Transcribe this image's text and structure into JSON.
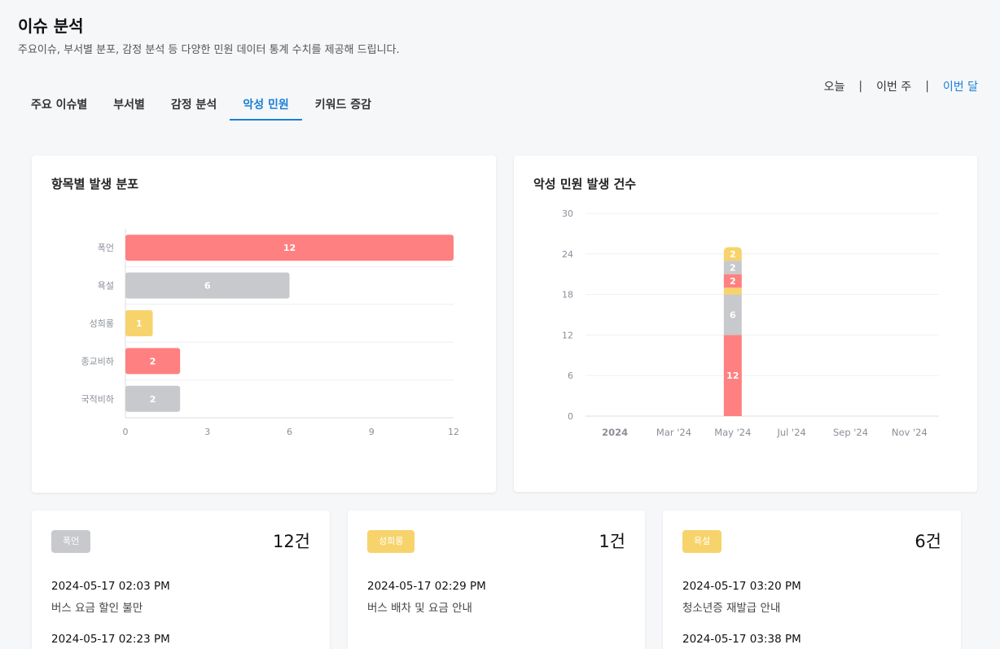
{
  "header": {
    "title": "이슈 분석",
    "subtitle": "주요이슈, 부서별 분포, 감정 분석 등 다양한 민원 데이터 통계 수치를 제공해 드립니다."
  },
  "tabs": [
    {
      "label": "주요 이슈별",
      "active": false
    },
    {
      "label": "부서별",
      "active": false
    },
    {
      "label": "감정 분석",
      "active": false
    },
    {
      "label": "악성 민원",
      "active": true
    },
    {
      "label": "키워드 증감",
      "active": false
    }
  ],
  "period": {
    "today": "오늘",
    "week": "이번 주",
    "month": "이번 달",
    "separator": "|",
    "selected": "이번 달"
  },
  "colors": {
    "accent": "#1a7fd6",
    "red": "#ff8080",
    "gray": "#c8c9cc",
    "yellow": "#f7d36b"
  },
  "left_card": {
    "title": "항목별 발생 분포"
  },
  "right_card": {
    "title": "악성 민원 발생 건수"
  },
  "chart_data": [
    {
      "type": "bar",
      "orientation": "horizontal",
      "categories": [
        "폭언",
        "욕설",
        "성희롱",
        "종교비하",
        "국적비하"
      ],
      "values": [
        12,
        6,
        1,
        2,
        2
      ],
      "bar_colors": [
        "#ff8080",
        "#c8c9cc",
        "#f7d36b",
        "#ff8080",
        "#c8c9cc"
      ],
      "xlim": [
        0,
        12
      ],
      "xticks": [
        0,
        3,
        6,
        9,
        12
      ],
      "grid": true
    },
    {
      "type": "bar",
      "stacked": true,
      "x_ticks": [
        "2024",
        "Mar '24",
        "May '24",
        "Jul '24",
        "Sep '24",
        "Nov '24"
      ],
      "ylim": [
        0,
        30
      ],
      "yticks": [
        0,
        6,
        12,
        18,
        24,
        30
      ],
      "bar_category": "May '24",
      "segments": [
        {
          "value": 12,
          "color": "#ff8080",
          "label": "12"
        },
        {
          "value": 6,
          "color": "#c8c9cc",
          "label": "6"
        },
        {
          "value": 1,
          "color": "#f7d36b",
          "label": ""
        },
        {
          "value": 2,
          "color": "#ff8080",
          "label": "2"
        },
        {
          "value": 2,
          "color": "#c8c9cc",
          "label": "2"
        },
        {
          "value": 2,
          "color": "#f7d36b",
          "label": "2"
        }
      ],
      "grid": true
    }
  ],
  "stat_cards": [
    {
      "badge": "폭언",
      "badge_color": "#c8c9cc",
      "count": "12건",
      "entries": [
        {
          "time": "2024-05-17 02:03 PM",
          "text": "버스 요금 할인 불만"
        },
        {
          "time": "2024-05-17 02:23 PM",
          "text": ""
        }
      ]
    },
    {
      "badge": "성희롱",
      "badge_color": "#f7d36b",
      "count": "1건",
      "entries": [
        {
          "time": "2024-05-17 02:29 PM",
          "text": "버스 배차 및 요금 안내"
        }
      ]
    },
    {
      "badge": "욕설",
      "badge_color": "#f7d36b",
      "count": "6건",
      "entries": [
        {
          "time": "2024-05-17 03:20 PM",
          "text": "청소년증 재발급 안내"
        },
        {
          "time": "2024-05-17 03:38 PM",
          "text": ""
        }
      ]
    }
  ]
}
